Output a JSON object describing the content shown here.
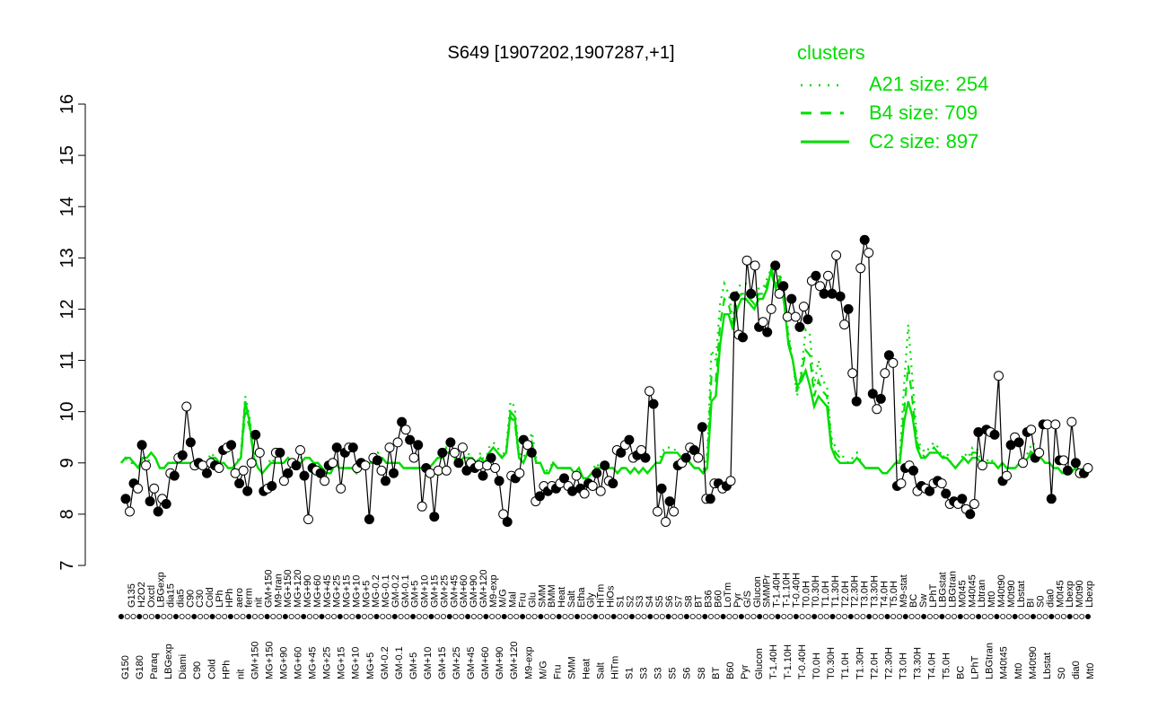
{
  "chart_data": {
    "type": "line",
    "title": "S649 [1907202,1907287,+1]",
    "xlabel": "",
    "ylabel": "",
    "ylim": [
      7,
      16
    ],
    "yticks": [
      7,
      8,
      9,
      10,
      11,
      12,
      13,
      14,
      15,
      16
    ],
    "legend": {
      "title": "clusters",
      "placement": "top-right",
      "entries": [
        {
          "label": "A21 size: 254",
          "style": "dotted"
        },
        {
          "label": "B4 size: 709",
          "style": "dashed"
        },
        {
          "label": "C2 size: 897",
          "style": "solid"
        }
      ]
    },
    "colors": {
      "cluster_lines": "#00dd00",
      "points_dark": "#000000",
      "points_light": "#ffffff"
    },
    "tick_labels_top": [
      "G135",
      "H2O2",
      "Oxctl",
      "LBGexp",
      "dia15",
      "dia5",
      "C90",
      "C30",
      "Cold",
      "LPh",
      "HPh",
      "aero",
      "ferm",
      "nit",
      "GM+150",
      "M9-tran",
      "MG+150",
      "MG+120",
      "MG+90",
      "MG+60",
      "MG+45",
      "MG+25",
      "MG+15",
      "MG+10",
      "MG+5",
      "MG-0.2",
      "MG-0.1",
      "GM-0.2",
      "GM-0.1",
      "GM+5",
      "GM+10",
      "GM+15",
      "GM+25",
      "GM+45",
      "GM+60",
      "GM+90",
      "GM+120",
      "M9-exp",
      "M/G",
      "Mal",
      "Fru",
      "Glu",
      "SMM",
      "BMM",
      "Heat",
      "Salt",
      "Etha",
      "Gly",
      "HiTm",
      "HiOs",
      "S1",
      "S2",
      "S3",
      "S4",
      "S5",
      "S6",
      "S7",
      "S8",
      "BT",
      "B36",
      "B60",
      "LoTm",
      "Pyr",
      "G/S",
      "Glucon",
      "SMMPr",
      "T-1.40H",
      "T-1.10H",
      "T-0.40H",
      "T0.0H",
      "T0.30H",
      "T1.0H",
      "T1.30H",
      "T2.0H",
      "T2.30H",
      "T3.0H",
      "T3.30H",
      "T4.0H",
      "T5.0H",
      "M9-stat",
      "BC",
      "Sw",
      "LPhT",
      "LBGstat",
      "LBGtran",
      "M0t45",
      "M40t45",
      "Lbtran",
      "Mt0",
      "M40t90",
      "M0t90",
      "Lbstat",
      "BI",
      "S0",
      "dia0",
      "M0t45",
      "Lbexp",
      "M0t90",
      "Lbexp"
    ],
    "tick_labels_bottom": [
      "G150",
      "G180",
      "Paraq",
      "LBGexp",
      "Diami",
      "C90",
      "Cold",
      "HPh",
      "nit",
      "GM+150",
      "MG+150",
      "MG+90",
      "MG+60",
      "MG+45",
      "MG+25",
      "MG+15",
      "MG+10",
      "MG+5",
      "GM-0.2",
      "GM-0.1",
      "GM+5",
      "GM+10",
      "GM+15",
      "GM+25",
      "GM+45",
      "GM+60",
      "GM+90",
      "GM+120",
      "M9-exp",
      "M/G",
      "Fru",
      "SMM",
      "Heat",
      "Salt",
      "HiTm",
      "S1",
      "S3",
      "S3",
      "S5",
      "S6",
      "S8",
      "BT",
      "B60",
      "Pyr",
      "Glucon",
      "T-1.40H",
      "T-1.10H",
      "T-0.40H",
      "T0.0H",
      "T0.30H",
      "T1.0H",
      "T1.30H",
      "T2.0H",
      "T2.30H",
      "T3.0H",
      "T3.30H",
      "T4.0H",
      "T5.0H",
      "BC",
      "LPhT",
      "LBGtran",
      "M40t45",
      "Mt0",
      "M40t90",
      "Lbstat",
      "S0",
      "dia0",
      "Mt0"
    ],
    "series": [
      {
        "name": "A21 size: 254",
        "style": "dotted",
        "values": [
          9.0,
          9.1,
          9.0,
          9.0,
          8.9,
          9.1,
          9.1,
          9.2,
          9.1,
          8.9,
          8.9,
          9.0,
          9.0,
          9.1,
          9.0,
          9.0,
          9.0,
          9.0,
          8.9,
          9.0,
          9.0,
          9.2,
          9.1,
          9.0,
          9.0,
          8.9,
          8.9,
          9.0,
          9.2,
          10.3,
          9.9,
          9.2,
          8.9,
          8.8,
          8.9,
          9.1,
          9.0,
          9.0,
          9.0,
          9.1,
          9.0,
          9.0,
          9.1,
          9.1,
          9.1,
          9.0,
          9.0,
          8.9,
          8.8,
          8.8,
          9.0,
          8.9,
          8.9,
          8.9,
          8.9,
          8.8,
          8.9,
          8.9,
          9.0,
          9.0,
          9.2,
          9.1,
          9.0,
          9.0,
          9.0,
          9.0,
          8.9,
          8.9,
          8.9,
          8.9,
          8.9,
          8.9,
          8.9,
          9.0,
          9.1,
          9.1,
          9.3,
          9.2,
          9.1,
          9.0,
          9.1,
          9.2,
          9.1,
          9.0,
          9.2,
          9.0,
          9.3,
          9.4,
          9.3,
          9.1,
          9.3,
          10.2,
          10.1,
          9.2,
          9.1,
          9.3,
          9.6,
          9.1,
          9.0,
          8.8,
          8.9,
          9.0,
          8.9,
          8.9,
          8.9,
          8.9,
          8.8,
          8.9,
          8.7,
          8.7,
          8.8,
          9.0,
          8.9,
          9.0,
          8.9,
          8.9,
          8.8,
          8.9,
          8.9,
          8.8,
          8.9,
          8.8,
          8.9,
          8.8,
          8.9,
          9.0,
          9.1,
          9.3,
          9.3,
          9.3,
          9.2,
          9.1,
          9.2,
          9.0,
          8.9,
          8.9,
          8.8,
          9.2,
          11.2,
          11.0,
          12.1,
          12.5,
          12.3,
          11.8,
          12.4,
          12.5,
          12.5,
          12.3,
          12.2,
          12.4,
          12.4,
          12.6,
          12.8,
          12.5,
          12.7,
          12.3,
          11.5,
          11.0,
          10.3,
          10.8,
          11.6,
          11.5,
          10.5,
          11.0,
          10.6,
          10.5,
          9.5,
          9.3,
          9.2,
          9.1,
          9.0,
          9.1,
          9.2,
          9.0,
          8.9,
          8.9,
          8.9,
          8.9,
          8.8,
          8.8,
          8.9,
          9.0,
          9.1,
          10.5,
          11.7,
          10.6,
          9.5,
          9.3,
          9.2,
          9.3,
          9.4,
          9.3,
          9.1,
          9.2,
          9.0,
          8.9,
          9.0,
          9.2,
          9.1,
          9.3,
          9.3,
          9.0,
          9.0,
          9.1,
          9.0,
          8.9,
          9.0,
          8.9,
          8.9,
          8.9,
          9.0,
          9.1,
          9.2,
          9.4,
          9.3,
          9.1,
          9.0,
          9.0,
          8.9,
          8.9,
          8.8,
          8.8,
          8.8,
          8.9,
          8.8,
          8.9,
          8.9
        ]
      },
      {
        "name": "B4 size: 709",
        "style": "dashed",
        "values": [
          9.0,
          9.1,
          9.0,
          9.0,
          8.9,
          9.0,
          9.0,
          9.1,
          9.1,
          8.9,
          8.9,
          9.0,
          9.0,
          9.0,
          9.0,
          9.0,
          9.0,
          9.0,
          8.9,
          8.9,
          9.0,
          9.1,
          9.1,
          9.0,
          9.0,
          8.9,
          8.9,
          9.0,
          9.1,
          10.0,
          9.7,
          9.1,
          8.9,
          8.8,
          8.9,
          9.0,
          9.0,
          9.0,
          9.0,
          9.1,
          9.0,
          9.0,
          9.0,
          9.1,
          9.1,
          9.0,
          9.0,
          8.9,
          8.8,
          8.8,
          9.0,
          8.9,
          8.9,
          8.9,
          8.9,
          8.8,
          8.9,
          8.9,
          9.0,
          9.0,
          9.1,
          9.1,
          9.0,
          9.0,
          9.0,
          9.0,
          8.9,
          8.9,
          8.9,
          8.9,
          8.9,
          8.9,
          8.9,
          9.0,
          9.1,
          9.1,
          9.2,
          9.2,
          9.1,
          9.0,
          9.1,
          9.1,
          9.1,
          9.0,
          9.1,
          9.0,
          9.2,
          9.3,
          9.2,
          9.1,
          9.2,
          9.9,
          9.8,
          9.1,
          9.0,
          9.2,
          9.4,
          9.0,
          9.0,
          8.8,
          8.8,
          9.0,
          8.9,
          8.9,
          8.9,
          8.9,
          8.8,
          8.9,
          8.7,
          8.7,
          8.8,
          8.9,
          8.9,
          9.0,
          8.9,
          8.9,
          8.8,
          8.9,
          8.9,
          8.8,
          8.9,
          8.8,
          8.9,
          8.8,
          8.9,
          9.0,
          9.0,
          9.2,
          9.2,
          9.2,
          9.2,
          9.1,
          9.1,
          9.0,
          8.9,
          8.9,
          8.8,
          9.0,
          10.7,
          10.6,
          11.7,
          12.2,
          12.1,
          11.7,
          12.2,
          12.3,
          12.3,
          12.2,
          12.1,
          12.3,
          12.3,
          12.5,
          12.7,
          12.4,
          12.6,
          12.2,
          11.4,
          11.0,
          10.4,
          10.7,
          11.2,
          11.1,
          10.3,
          10.6,
          10.4,
          10.3,
          9.4,
          9.2,
          9.1,
          9.0,
          9.0,
          9.0,
          9.1,
          9.0,
          8.9,
          8.9,
          8.9,
          8.9,
          8.8,
          8.8,
          8.9,
          9.0,
          9.0,
          10.0,
          10.9,
          10.2,
          9.4,
          9.2,
          9.1,
          9.2,
          9.3,
          9.2,
          9.1,
          9.1,
          9.0,
          8.9,
          9.0,
          9.1,
          9.0,
          9.2,
          9.2,
          9.0,
          9.0,
          9.0,
          9.0,
          8.9,
          9.0,
          8.9,
          8.9,
          8.9,
          9.0,
          9.0,
          9.1,
          9.3,
          9.2,
          9.1,
          9.0,
          9.0,
          8.9,
          8.9,
          8.8,
          8.8,
          8.8,
          8.9,
          8.8,
          8.9,
          8.9
        ]
      },
      {
        "name": "C2 size: 897",
        "style": "solid",
        "values": [
          9.0,
          9.1,
          9.1,
          9.0,
          8.9,
          9.1,
          9.1,
          9.2,
          9.1,
          8.9,
          8.9,
          9.0,
          9.0,
          9.0,
          9.0,
          9.0,
          9.0,
          9.0,
          8.9,
          8.9,
          9.0,
          9.1,
          9.1,
          9.0,
          9.0,
          8.9,
          8.9,
          9.0,
          9.1,
          10.2,
          9.8,
          9.1,
          8.9,
          8.8,
          8.9,
          9.0,
          9.0,
          9.0,
          9.0,
          9.1,
          9.0,
          9.0,
          9.0,
          9.1,
          9.1,
          9.0,
          9.0,
          8.9,
          8.8,
          8.8,
          9.0,
          8.9,
          8.9,
          8.9,
          8.9,
          8.8,
          8.9,
          8.9,
          9.0,
          9.0,
          9.1,
          9.1,
          9.0,
          9.0,
          9.0,
          9.0,
          8.9,
          8.9,
          8.9,
          8.9,
          8.9,
          8.9,
          8.9,
          9.0,
          9.1,
          9.1,
          9.2,
          9.2,
          9.1,
          9.0,
          9.1,
          9.1,
          9.1,
          9.0,
          9.1,
          9.0,
          9.2,
          9.3,
          9.2,
          9.1,
          9.2,
          10.0,
          9.9,
          9.1,
          9.0,
          9.2,
          9.4,
          9.0,
          9.0,
          8.8,
          8.8,
          9.0,
          8.9,
          8.9,
          8.9,
          8.9,
          8.8,
          8.9,
          8.7,
          8.7,
          8.8,
          8.9,
          8.9,
          9.0,
          8.9,
          8.9,
          8.8,
          8.9,
          8.9,
          8.8,
          8.9,
          8.8,
          8.9,
          8.8,
          8.9,
          9.0,
          9.0,
          9.2,
          9.2,
          9.2,
          9.2,
          9.1,
          9.1,
          9.0,
          8.9,
          8.9,
          8.8,
          8.9,
          10.2,
          10.3,
          11.3,
          11.9,
          11.9,
          11.6,
          12.0,
          12.2,
          12.2,
          12.1,
          12.0,
          12.2,
          12.2,
          12.4,
          12.8,
          12.4,
          12.6,
          12.1,
          11.3,
          11.0,
          10.5,
          10.6,
          10.8,
          10.5,
          10.1,
          10.3,
          10.2,
          10.1,
          9.3,
          9.1,
          9.0,
          9.0,
          9.0,
          9.0,
          9.1,
          9.0,
          8.9,
          8.9,
          8.9,
          8.9,
          8.8,
          8.8,
          8.9,
          9.0,
          9.0,
          9.8,
          10.2,
          9.9,
          9.3,
          9.1,
          9.1,
          9.2,
          9.2,
          9.2,
          9.1,
          9.1,
          9.0,
          8.9,
          9.0,
          9.1,
          9.0,
          9.1,
          9.1,
          9.0,
          9.0,
          9.0,
          9.0,
          8.9,
          9.0,
          8.9,
          8.9,
          8.9,
          9.0,
          9.0,
          9.1,
          9.2,
          9.1,
          9.1,
          9.0,
          9.0,
          8.9,
          8.9,
          8.8,
          8.8,
          8.8,
          8.9,
          8.8,
          8.9,
          8.9
        ]
      },
      {
        "name": "",
        "style": "points",
        "values": [
          8.3,
          8.05,
          8.6,
          8.5,
          9.35,
          8.95,
          8.25,
          8.5,
          8.05,
          8.3,
          8.2,
          8.8,
          8.75,
          9.1,
          9.15,
          10.1,
          9.4,
          8.95,
          9.0,
          8.95,
          8.8,
          9.0,
          8.95,
          8.9,
          9.25,
          9.3,
          9.35,
          8.8,
          8.6,
          8.85,
          8.45,
          9.0,
          9.55,
          9.2,
          8.45,
          8.5,
          8.55,
          9.2,
          9.2,
          8.65,
          8.8,
          9.0,
          8.95,
          9.25,
          8.75,
          7.9,
          8.9,
          8.85,
          8.8,
          8.65,
          8.95,
          9.0,
          9.3,
          8.5,
          9.2,
          9.3,
          9.3,
          8.9,
          9.0,
          8.95,
          7.9,
          9.1,
          9.05,
          8.85,
          8.65,
          9.3,
          8.8,
          9.4,
          9.8,
          9.65,
          9.45,
          9.1,
          9.35,
          8.15,
          8.9,
          8.8,
          7.95,
          8.85,
          9.2,
          8.85,
          9.4,
          9.2,
          9.0,
          9.3,
          8.85,
          9.0,
          8.9,
          8.95,
          8.75,
          8.95,
          9.1,
          8.9,
          8.65,
          8.0,
          7.85,
          8.75,
          8.7,
          8.8,
          9.45,
          9.35,
          9.2,
          8.25,
          8.35,
          8.55,
          8.45,
          8.55,
          8.5,
          8.6,
          8.7,
          8.55,
          8.45,
          8.75,
          8.5,
          8.4,
          8.6,
          8.55,
          8.8,
          8.45,
          8.95,
          8.65,
          8.6,
          9.25,
          9.2,
          9.35,
          9.45,
          9.1,
          9.15,
          9.25,
          9.1,
          10.4,
          10.15,
          8.05,
          8.5,
          7.85,
          8.25,
          8.05,
          8.95,
          9.0,
          9.1,
          9.3,
          9.25,
          9.1,
          9.7,
          8.3,
          8.3,
          8.6,
          8.6,
          8.5,
          8.55,
          8.65,
          12.25,
          11.5,
          11.45,
          12.95,
          12.3,
          12.85,
          11.65,
          11.75,
          11.55,
          12.0,
          12.85,
          12.3,
          12.45,
          11.85,
          12.2,
          11.85,
          11.65,
          12.05,
          11.8,
          12.55,
          12.65,
          12.45,
          12.3,
          12.65,
          12.3,
          13.05,
          12.25,
          11.7,
          12.0,
          10.75,
          10.2,
          12.8,
          13.35,
          13.1,
          10.35,
          10.05,
          10.25,
          10.75,
          11.1,
          10.95,
          8.55,
          8.6,
          8.9,
          8.95,
          8.85,
          8.45,
          8.55,
          8.5,
          8.45,
          8.6,
          8.65,
          8.6,
          8.4,
          8.2,
          8.25,
          8.2,
          8.3,
          8.1,
          8.0,
          8.2,
          9.6,
          8.95,
          9.65,
          9.6,
          9.55,
          10.7,
          8.65,
          8.75,
          9.35,
          9.5,
          9.4,
          9.0,
          9.6,
          9.65,
          9.1,
          9.2,
          9.75,
          9.75,
          8.3,
          9.75,
          9.05,
          9.05,
          8.85,
          9.8,
          9.0,
          8.8,
          8.8,
          8.9
        ]
      }
    ]
  }
}
